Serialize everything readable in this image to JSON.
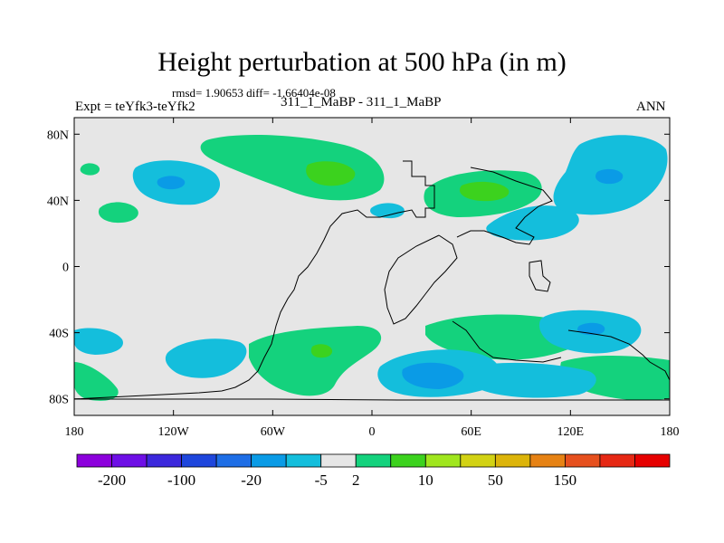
{
  "title": "Height perturbation at 500 hPa (in m)",
  "stats": "rmsd= 1.90653 diff= -1.66404e-08",
  "left_label": "Expt = teYfk3-teYfk2",
  "center_label": "311_1_MaBP - 311_1_MaBP",
  "right_label": "ANN",
  "lat_ticks": [
    {
      "value": 80,
      "label": "80N"
    },
    {
      "value": 40,
      "label": "40N"
    },
    {
      "value": 0,
      "label": "0"
    },
    {
      "value": -40,
      "label": "40S"
    },
    {
      "value": -80,
      "label": "80S"
    }
  ],
  "lon_ticks": [
    {
      "value": -180,
      "label": "180"
    },
    {
      "value": -120,
      "label": "120W"
    },
    {
      "value": -60,
      "label": "60W"
    },
    {
      "value": 0,
      "label": "0"
    },
    {
      "value": 60,
      "label": "60E"
    },
    {
      "value": 120,
      "label": "120E"
    },
    {
      "value": 180,
      "label": "180"
    }
  ],
  "colorbar": {
    "colors": [
      "#8c00dc",
      "#6e0fe6",
      "#3c28dc",
      "#1e46dc",
      "#1e6ee6",
      "#0a9be6",
      "#14bedc",
      "#e6e6e6",
      "#14d27d",
      "#3cd21e",
      "#a0e61e",
      "#d2d214",
      "#dcb40a",
      "#e68214",
      "#e6501e",
      "#e62814",
      "#e60000"
    ],
    "labels": [
      {
        "text": "-200",
        "after_box": 1
      },
      {
        "text": "-100",
        "after_box": 3
      },
      {
        "text": "-20",
        "after_box": 5
      },
      {
        "text": "-5",
        "after_box": 7
      },
      {
        "text": "2",
        "after_box": 8
      },
      {
        "text": "10",
        "after_box": 10
      },
      {
        "text": "50",
        "after_box": 12
      },
      {
        "text": "150",
        "after_box": 14
      }
    ]
  },
  "map_colors": {
    "background": "#e6e6e6",
    "negative": "#14bedc",
    "strong_negative": "#0a9be6",
    "positive": "#14d27d",
    "strong_positive": "#3cd21e"
  }
}
